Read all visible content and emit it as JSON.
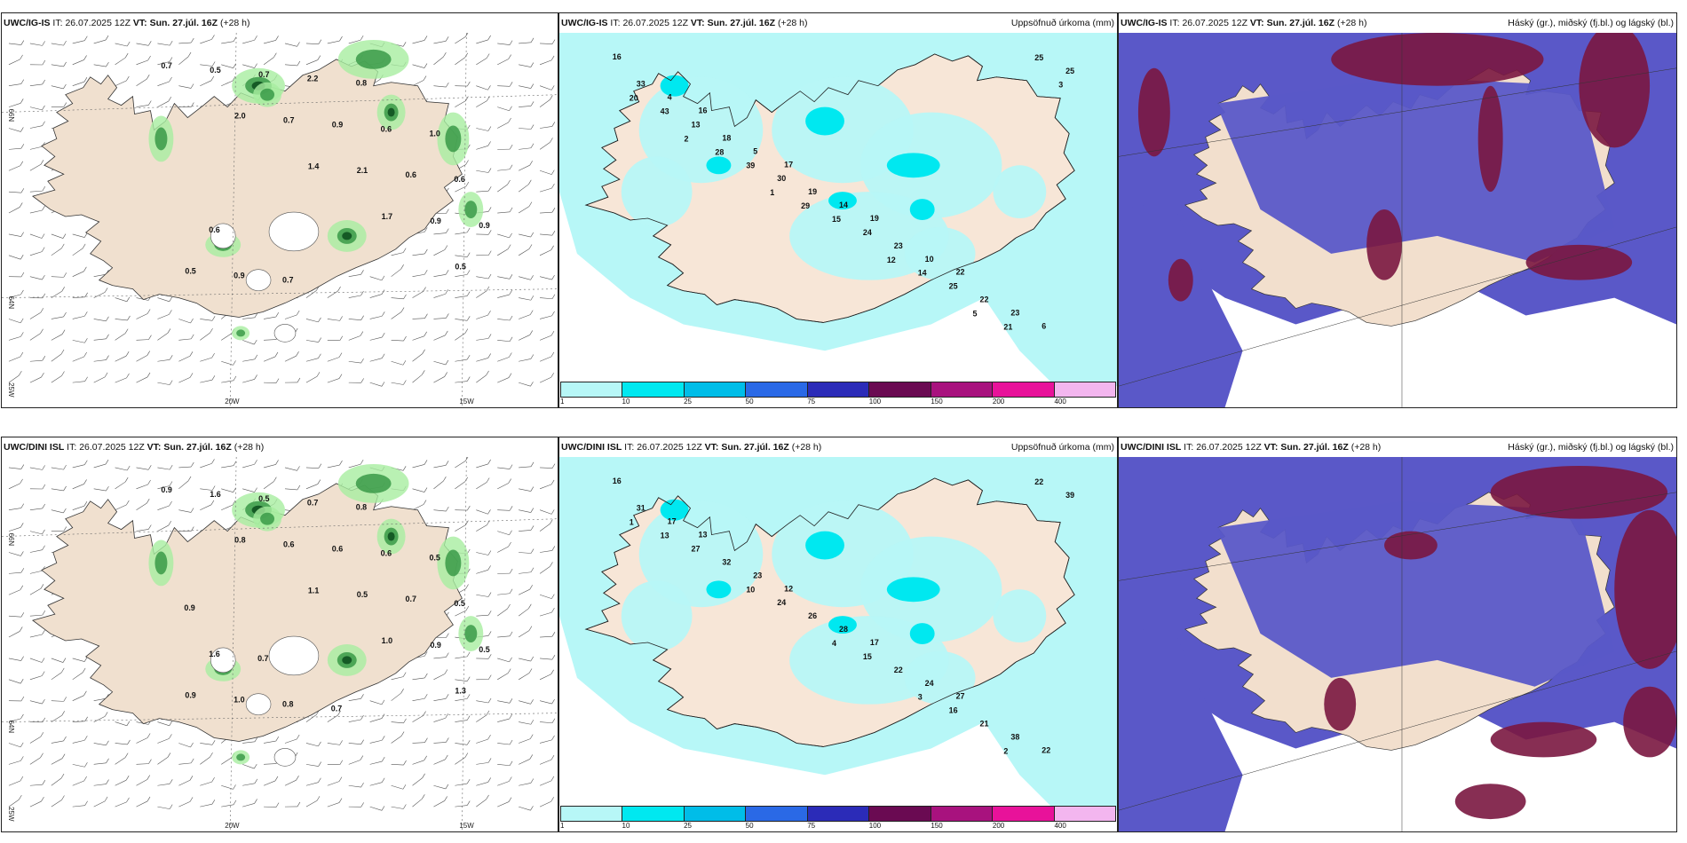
{
  "panels": {
    "top_wind": {
      "model": "UWC/IG-IS",
      "it_prefix": "IT: ",
      "it_value": "26.07.2025 12Z",
      "vt_label": "VT: Sun. 27.júl. 16Z",
      "lead": "(+28 h)",
      "right": ""
    },
    "top_precip": {
      "model": "UWC/IG-IS",
      "it_prefix": "IT: ",
      "it_value": "26.07.2025 12Z",
      "vt_label": "VT: Sun. 27.júl. 16Z",
      "lead": "(+28 h)",
      "right": "Uppsöfnuð úrkoma (mm)"
    },
    "top_cloud": {
      "model": "UWC/IG-IS",
      "it_prefix": "IT: ",
      "it_value": "26.07.2025 12Z",
      "vt_label": "VT: Sun. 27.júl. 16Z",
      "lead": "(+28 h)",
      "right": "Háský (gr.), miðský (fj.bl.) og lágský (bl.)"
    },
    "bot_wind": {
      "model": "UWC/DINI ISL",
      "it_prefix": "IT: ",
      "it_value": "26.07.2025 12Z",
      "vt_label": "VT: Sun. 27.júl. 16Z",
      "lead": "(+28 h)",
      "right": ""
    },
    "bot_precip": {
      "model": "UWC/DINI ISL",
      "it_prefix": "IT: ",
      "it_value": "26.07.2025 12Z",
      "vt_label": "VT: Sun. 27.júl. 16Z",
      "lead": "(+28 h)",
      "right": "Uppsöfnuð úrkoma (mm)"
    },
    "bot_cloud": {
      "model": "UWC/DINI ISL",
      "it_prefix": "IT: ",
      "it_value": "26.07.2025 12Z",
      "vt_label": "VT: Sun. 27.júl. 16Z",
      "lead": "(+28 h)",
      "right": "Háský (gr.), miðský (fj.bl.) og lágský (bl.)"
    }
  },
  "axes": {
    "lat66": "66N",
    "lat64": "64N",
    "lon25": "25W",
    "lon20": "20W",
    "lon15": "15W"
  },
  "legend": {
    "ticks": [
      "1",
      "10",
      "25",
      "50",
      "75",
      "100",
      "150",
      "200",
      "400"
    ],
    "colors": [
      "#b7f7f7",
      "#00e8f0",
      "#00bde8",
      "#2a69e6",
      "#2b2bb8",
      "#6a0a52",
      "#a8127e",
      "#e8129a",
      "#f3b6ef"
    ]
  },
  "top_wind_labels": [
    "0.7",
    "2.0",
    "1.4",
    "1.7",
    "0.5",
    "0.5",
    "0.7",
    "2.1",
    "0.9",
    "0.5",
    "0.7",
    "0.9",
    "0.6",
    "0.9",
    "0.9",
    "2.2",
    "0.6",
    "0.6",
    "0.6",
    "0.7",
    "0.8",
    "1.0"
  ],
  "bot_wind_labels": [
    "0.9",
    "0.8",
    "1.1",
    "1.0",
    "1.3",
    "1.6",
    "0.6",
    "0.5",
    "0.9",
    "0.9",
    "0.5",
    "0.6",
    "0.7",
    "0.5",
    "1.0",
    "0.7",
    "0.6",
    "0.5",
    "1.6",
    "0.8",
    "0.8",
    "0.5",
    "0.9",
    "0.7",
    "0.7"
  ],
  "top_precip_labels": [
    "16",
    "16",
    "17",
    "19",
    "22",
    "6",
    "4",
    "5",
    "14",
    "10",
    "23",
    "33",
    "18",
    "19",
    "23",
    "22",
    "25",
    "13",
    "30",
    "24",
    "25",
    "25",
    "43",
    "39",
    "15",
    "14",
    "21",
    "20",
    "28",
    "29",
    "12",
    "5",
    "3",
    "2",
    "1"
  ],
  "bot_precip_labels": [
    "16",
    "13",
    "12",
    "17",
    "27",
    "22",
    "17",
    "23",
    "28",
    "24",
    "38",
    "31",
    "32",
    "26",
    "22",
    "21",
    "39",
    "27",
    "24",
    "15",
    "16",
    "22",
    "13",
    "10",
    "4",
    "3",
    "2",
    "1"
  ]
}
